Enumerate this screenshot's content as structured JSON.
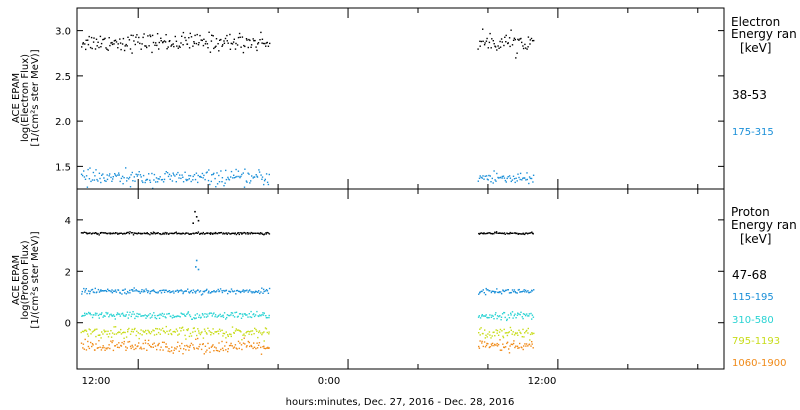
{
  "figure": {
    "xlabel": "hours:minutes, Dec. 27, 2016 - Dec. 28, 2016",
    "x_tick_labels": [
      "12:00",
      "0:00",
      "12:00"
    ]
  },
  "chart_data": [
    {
      "type": "scatter",
      "panel": "electron",
      "ylabel_lines": [
        "ACE EPAM",
        "log(Electron Flux)",
        "[1/(cm²s ster MeV)]"
      ],
      "legend_title": [
        "Electron",
        "Energy ran"
      ],
      "legend_unit": "[keV]",
      "x_unit": "hours since Dec. 27, 2016 00:00",
      "xlim": [
        8.5,
        45.5
      ],
      "ylim": [
        1.25,
        3.25
      ],
      "y_ticks": [
        1.5,
        2.0,
        2.5,
        3.0
      ],
      "y_tick_labels": [
        "1.5",
        "2.0",
        "2.5",
        "3.0"
      ],
      "segments": [
        [
          8.7,
          19.5
        ],
        [
          31.4,
          34.6
        ]
      ],
      "series": [
        {
          "name": "38-53",
          "color": "#000000",
          "mean": 2.88,
          "spread": 0.05
        },
        {
          "name": "175-315",
          "color": "#1a8fd8",
          "mean": 1.38,
          "spread": 0.04
        }
      ]
    },
    {
      "type": "scatter",
      "panel": "proton",
      "ylabel_lines": [
        "ACE EPAM",
        "log(Proton Flux)",
        "[1/(cm²s ster MeV)]"
      ],
      "legend_title": [
        "Proton",
        "Energy ran"
      ],
      "legend_unit": "[keV]",
      "x_unit": "hours since Dec. 27, 2016 00:00",
      "xlim": [
        8.5,
        45.5
      ],
      "ylim": [
        -1.8,
        5.2
      ],
      "y_ticks": [
        0,
        2,
        4
      ],
      "y_tick_labels": [
        "0",
        "2",
        "4"
      ],
      "segments": [
        [
          8.7,
          19.5
        ],
        [
          31.4,
          34.6
        ]
      ],
      "series": [
        {
          "name": "47-68",
          "color": "#000000",
          "mean": 3.5,
          "spread": 0.02
        },
        {
          "name": "115-195",
          "color": "#1a8fd8",
          "mean": 1.25,
          "spread": 0.05
        },
        {
          "name": "310-580",
          "color": "#29d3d3",
          "mean": 0.3,
          "spread": 0.07
        },
        {
          "name": "795-1193",
          "color": "#c8dc1a",
          "mean": -0.35,
          "spread": 0.1
        },
        {
          "name": "1060-1900",
          "color": "#f08a18",
          "mean": -0.9,
          "spread": 0.12
        }
      ],
      "spikes": [
        {
          "series": "47-68",
          "x": 15.2,
          "y": 4.35
        },
        {
          "series": "47-68",
          "x": 15.3,
          "y": 4.15
        },
        {
          "series": "47-68",
          "x": 15.4,
          "y": 4.0
        },
        {
          "series": "47-68",
          "x": 15.1,
          "y": 3.9
        },
        {
          "series": "115-195",
          "x": 15.3,
          "y": 2.45
        },
        {
          "series": "115-195",
          "x": 15.25,
          "y": 2.2
        },
        {
          "series": "115-195",
          "x": 15.4,
          "y": 2.1
        }
      ]
    }
  ]
}
